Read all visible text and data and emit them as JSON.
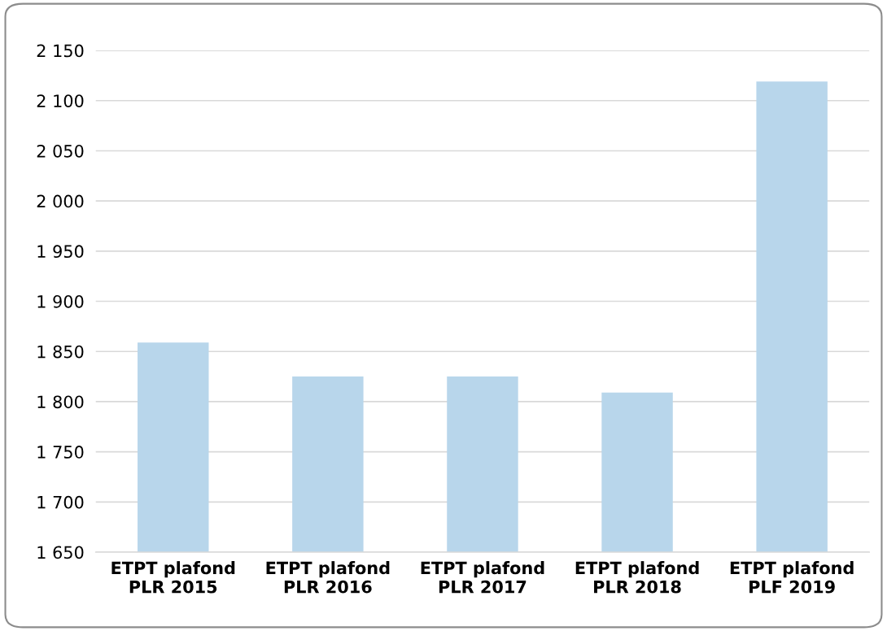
{
  "chart_data": {
    "type": "bar",
    "categories": [
      "ETPT plafond\nPLR 2015",
      "ETPT plafond\nPLR 2016",
      "ETPT plafond\nPLR 2017",
      "ETPT plafond\nPLR 2018",
      "ETPT plafond\nPLF 2019"
    ],
    "values": [
      1859,
      1825,
      1825,
      1809,
      2119
    ],
    "color": "#b8d6eb",
    "ylim": [
      1650,
      2150
    ],
    "yticks": [
      {
        "value": 1650,
        "label": "1 650"
      },
      {
        "value": 1700,
        "label": "1 700"
      },
      {
        "value": 1750,
        "label": "1 750"
      },
      {
        "value": 1800,
        "label": "1 800"
      },
      {
        "value": 1850,
        "label": "1 850"
      },
      {
        "value": 1900,
        "label": "1 900"
      },
      {
        "value": 1950,
        "label": "1 950"
      },
      {
        "value": 2000,
        "label": "2 000"
      },
      {
        "value": 2050,
        "label": "2 050"
      },
      {
        "value": 2100,
        "label": "2 100"
      },
      {
        "value": 2150,
        "label": "2 150"
      }
    ],
    "grid": "y"
  }
}
